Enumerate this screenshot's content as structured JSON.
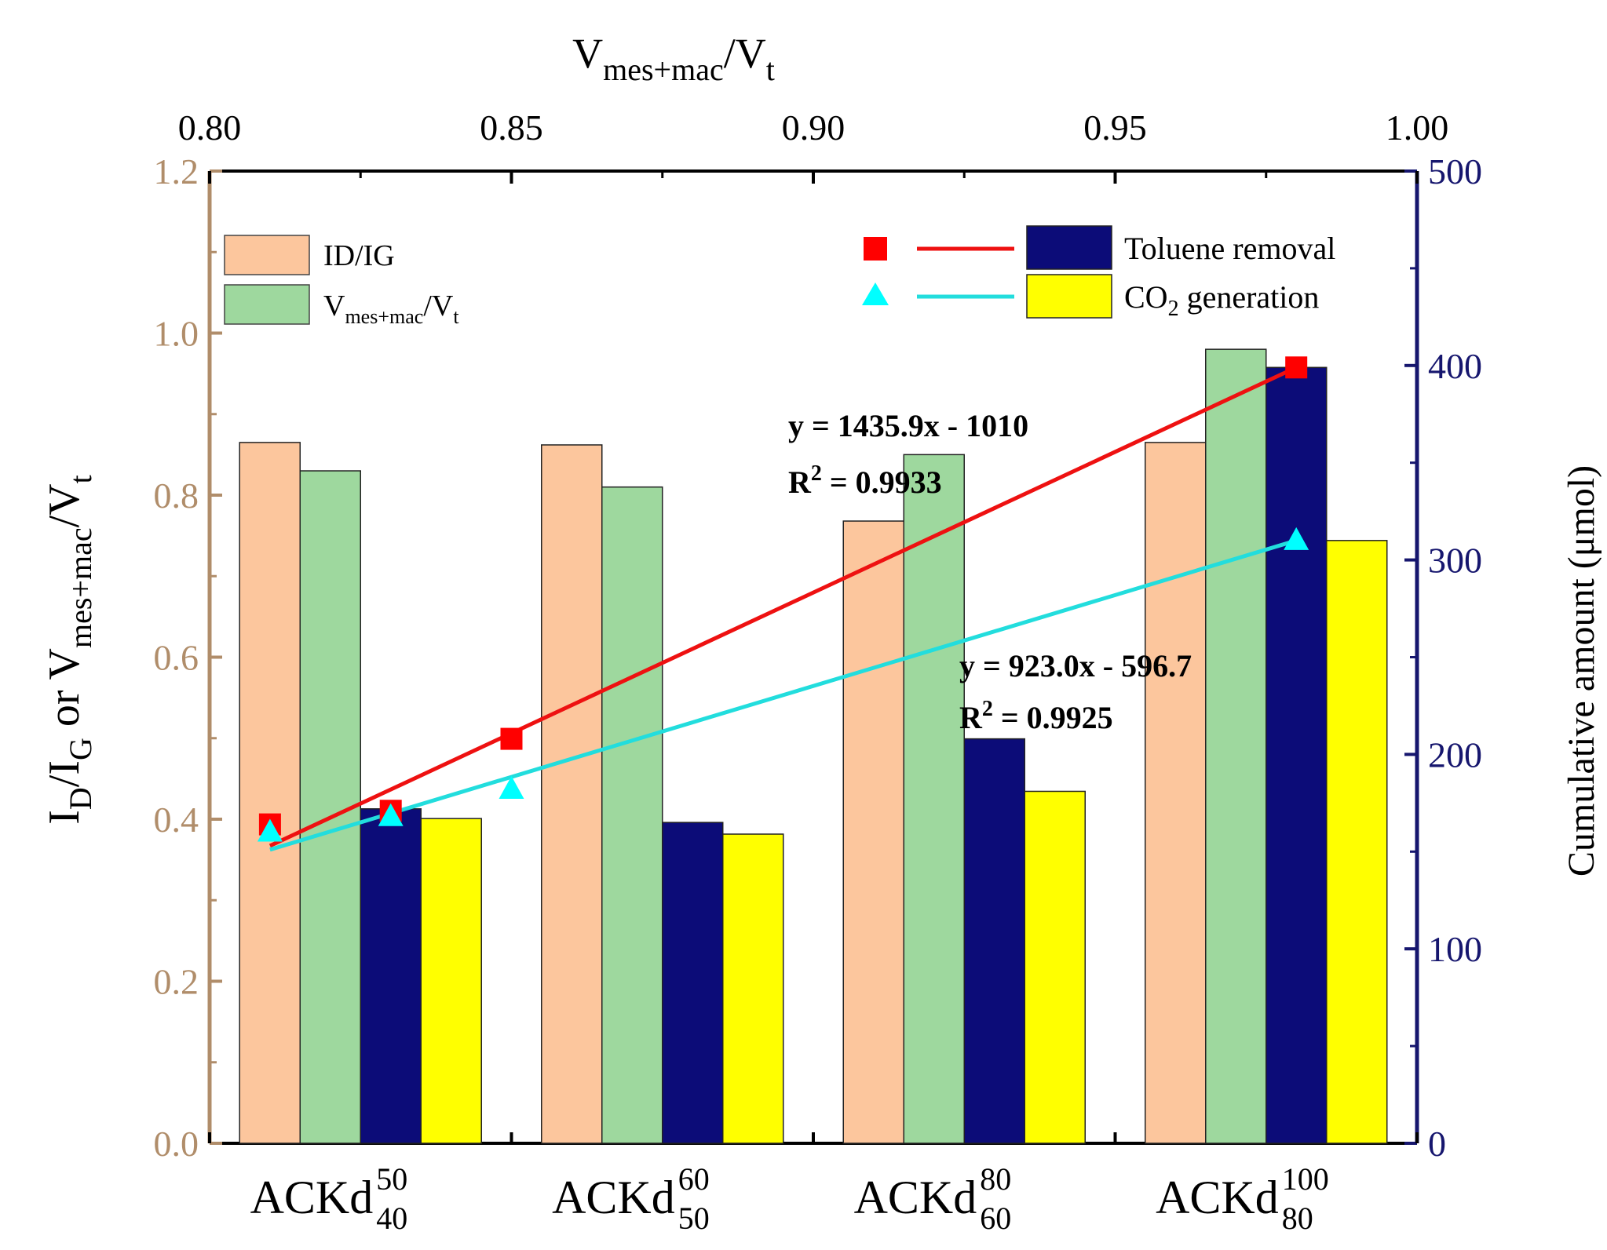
{
  "colors": {
    "left_axis": "#b08d6a",
    "right_axis": "#16166e",
    "id_ig": "#fcc69d",
    "vmes": "#9ed89e",
    "toluene": "#0c0c78",
    "co2": "#ffff00",
    "square_marker": "#ff0000",
    "triangle_marker": "#00ffff",
    "red_line": "#ee1111",
    "cyan_line": "#22dddd",
    "bar_stroke": "#222222"
  },
  "chart_data": {
    "type": "bar",
    "categories": [
      {
        "base": "ACKd",
        "sup": "50",
        "sub": "40"
      },
      {
        "base": "ACKd",
        "sup": "60",
        "sub": "50"
      },
      {
        "base": "ACKd",
        "sup": "80",
        "sub": "60"
      },
      {
        "base": "ACKd",
        "sup": "100",
        "sub": "80"
      }
    ],
    "left_axis": {
      "label": {
        "p1": "I",
        "s1": "D",
        "p2": "/I",
        "s2": "G",
        "p3": " or V",
        "s3": "mes+mac",
        "p4": "/V",
        "s4": "t"
      },
      "ylim": [
        0,
        1.2
      ],
      "ticks": [
        "0.0",
        "0.2",
        "0.4",
        "0.6",
        "0.8",
        "1.0",
        "1.2"
      ]
    },
    "right_axis": {
      "label": "Cumulative amount (μmol)",
      "ylim": [
        0,
        500
      ],
      "ticks": [
        "0",
        "100",
        "200",
        "300",
        "400",
        "500"
      ]
    },
    "top_axis": {
      "label": {
        "p1": "V",
        "s1": "mes+mac",
        "p2": "/V",
        "s2": "t"
      },
      "xlim": [
        0.8,
        1.0
      ],
      "ticks": [
        "0.80",
        "0.85",
        "0.90",
        "0.95",
        "1.00"
      ]
    },
    "bar_series": [
      {
        "name": "ID/IG",
        "axis": "left",
        "values": [
          0.865,
          0.862,
          0.768,
          0.865
        ]
      },
      {
        "name": "Vmes+mac/Vt",
        "axis": "left",
        "values": [
          0.83,
          0.81,
          0.85,
          0.98
        ]
      },
      {
        "name": "Toluene removal",
        "axis": "right",
        "values": [
          172,
          165,
          208,
          399
        ]
      },
      {
        "name": "CO2 generation",
        "axis": "right",
        "values": [
          167,
          159,
          181,
          310
        ]
      }
    ],
    "scatter_series": [
      {
        "name": "Toluene removal",
        "marker": "square",
        "x": [
          0.81,
          0.83,
          0.85,
          0.98
        ],
        "y": [
          164,
          171,
          208,
          399
        ]
      },
      {
        "name": "CO2 generation",
        "marker": "triangle",
        "x": [
          0.81,
          0.83,
          0.85,
          0.98
        ],
        "y": [
          160,
          168,
          182,
          310
        ]
      }
    ],
    "fit_lines": [
      {
        "series": "Toluene removal",
        "x": [
          0.81,
          0.98
        ],
        "y": [
          153,
          399
        ],
        "equation": "y = 1435.9x - 1010",
        "r2_value": " = 0.9933"
      },
      {
        "series": "CO2 generation",
        "x": [
          0.81,
          0.98
        ],
        "y": [
          151,
          310
        ],
        "equation": "y = 923.0x - 596.7",
        "r2_value": " = 0.9925"
      }
    ],
    "legend_left": [
      {
        "label": "ID/IG"
      },
      {
        "label": {
          "p1": "V",
          "s1": "mes+mac",
          "p2": "/V",
          "s2": "t"
        }
      }
    ],
    "legend_right": [
      {
        "label": "Toluene removal"
      },
      {
        "label": {
          "p1": "CO",
          "s1": "2",
          "p2": " generation"
        }
      }
    ]
  }
}
